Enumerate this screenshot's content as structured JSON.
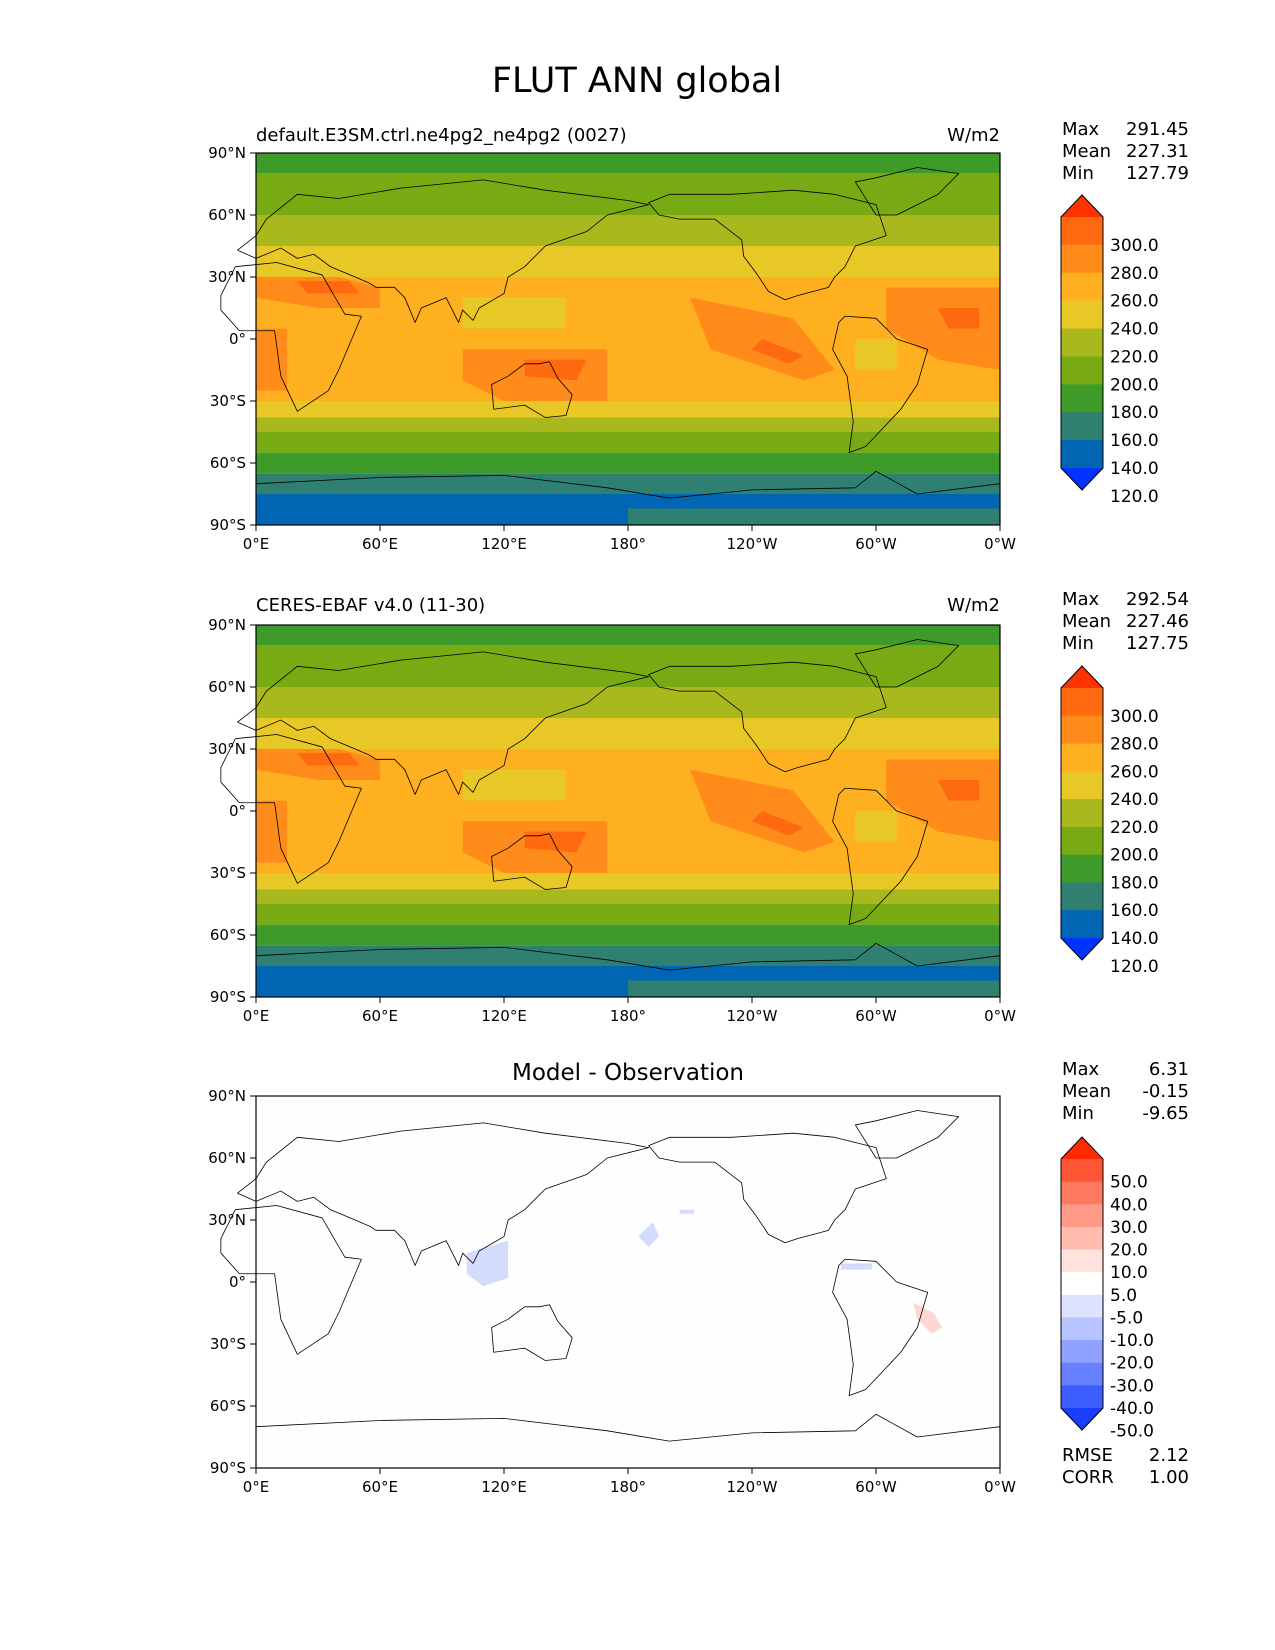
{
  "figure": {
    "title": "FLUT ANN global"
  },
  "axes": {
    "lat_ticks": [
      "90°N",
      "60°N",
      "30°N",
      "0°",
      "30°S",
      "60°S",
      "90°S"
    ],
    "lon_ticks": [
      "0°E",
      "60°E",
      "120°E",
      "180°",
      "120°W",
      "60°W",
      "0°W"
    ]
  },
  "panels": [
    {
      "id": "model",
      "title_left": "default.E3SM.ctrl.ne4pg2_ne4pg2 (0027)",
      "title_center": "",
      "units": "W/m2",
      "stats": [
        {
          "label": "Max",
          "value": "291.45"
        },
        {
          "label": "Mean",
          "value": "227.31"
        },
        {
          "label": "Min",
          "value": "127.79"
        }
      ],
      "colorbar": {
        "labels": [
          "300.0",
          "280.0",
          "260.0",
          "240.0",
          "220.0",
          "200.0",
          "180.0",
          "160.0",
          "140.0",
          "120.0"
        ],
        "colors": [
          "#ff3300",
          "#ff6a10",
          "#ff8c1a",
          "#ffb020",
          "#e8c826",
          "#a9b81c",
          "#78aa14",
          "#3e9b2a",
          "#2f8070",
          "#0066b4",
          "#0033ff"
        ]
      }
    },
    {
      "id": "obs",
      "title_left": "CERES-EBAF v4.0 (11-30)",
      "title_center": "",
      "units": "W/m2",
      "stats": [
        {
          "label": "Max",
          "value": "292.54"
        },
        {
          "label": "Mean",
          "value": "227.46"
        },
        {
          "label": "Min",
          "value": "127.75"
        }
      ],
      "colorbar": {
        "labels": [
          "300.0",
          "280.0",
          "260.0",
          "240.0",
          "220.0",
          "200.0",
          "180.0",
          "160.0",
          "140.0",
          "120.0"
        ],
        "colors": [
          "#ff3300",
          "#ff6a10",
          "#ff8c1a",
          "#ffb020",
          "#e8c826",
          "#a9b81c",
          "#78aa14",
          "#3e9b2a",
          "#2f8070",
          "#0066b4",
          "#0033ff"
        ]
      }
    },
    {
      "id": "diff",
      "title_left": "",
      "title_center": "Model - Observation",
      "units": "",
      "stats": [
        {
          "label": "Max",
          "value": "6.31"
        },
        {
          "label": "Mean",
          "value": "-0.15"
        },
        {
          "label": "Min",
          "value": "-9.65"
        }
      ],
      "colorbar": {
        "labels": [
          "50.0",
          "40.0",
          "30.0",
          "20.0",
          "10.0",
          "5.0",
          "-5.0",
          "-10.0",
          "-20.0",
          "-30.0",
          "-40.0",
          "-50.0"
        ],
        "colors": [
          "#ff2a00",
          "#ff5535",
          "#ff7860",
          "#ff9a88",
          "#ffbdb0",
          "#ffe2dc",
          "#ffffff",
          "#dde3ff",
          "#b8c4ff",
          "#8fa2ff",
          "#6680ff",
          "#3d5dff",
          "#1a3dff"
        ]
      },
      "footer_stats": [
        {
          "label": "RMSE",
          "value": "2.12"
        },
        {
          "label": "CORR",
          "value": "1.00"
        }
      ]
    }
  ]
}
